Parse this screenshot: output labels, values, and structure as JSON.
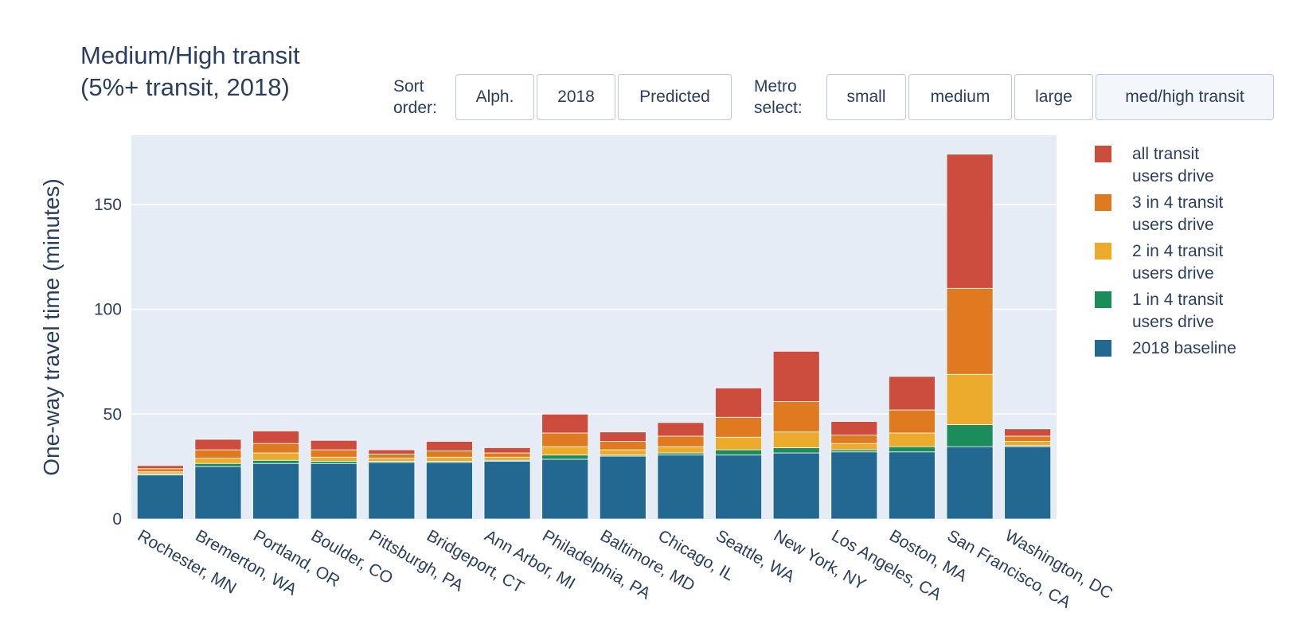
{
  "title_line1": "Medium/High transit",
  "title_line2": "(5%+ transit, 2018)",
  "sort": {
    "label_line1": "Sort",
    "label_line2": "order:",
    "buttons": [
      "Alph.",
      "2018",
      "Predicted"
    ]
  },
  "metro": {
    "label_line1": "Metro",
    "label_line2": "select:",
    "buttons": [
      "small",
      "medium",
      "large",
      "med/high transit"
    ],
    "active": "med/high transit"
  },
  "colors": {
    "plot_bg": "#e5ecf6",
    "grid": "#ffffff",
    "text": "#2a3f5f"
  },
  "chart_data": {
    "type": "bar",
    "barmode": "stack",
    "ylabel": "One-way travel time (minutes)",
    "ylim": [
      0,
      183
    ],
    "yticks": [
      0,
      50,
      100,
      150
    ],
    "grid": true,
    "legend_position": "right",
    "categories": [
      "Rochester, MN",
      "Bremerton, WA",
      "Portland, OR",
      "Boulder, CO",
      "Pittsburgh, PA",
      "Bridgeport, CT",
      "Ann Arbor, MI",
      "Philadelphia, PA",
      "Baltimore, MD",
      "Chicago, IL",
      "Seattle, WA",
      "New York, NY",
      "Los Angeles, CA",
      "Boston, MA",
      "San Francisco, CA",
      "Washington, DC"
    ],
    "series": [
      {
        "name": "2018 baseline",
        "color": "#226891",
        "values": [
          21,
          25,
          26.5,
          26.5,
          27,
          27,
          27.5,
          28.5,
          30,
          30.5,
          30.5,
          31.5,
          32,
          32,
          34.5,
          34.5
        ]
      },
      {
        "name": "1 in 4 transit users drive",
        "color": "#1c8c5a",
        "values": [
          0.5,
          1.5,
          1.5,
          1,
          0.5,
          0.5,
          0.5,
          2,
          0.5,
          1,
          2.5,
          2.5,
          1,
          2.5,
          10.5,
          0.5
        ]
      },
      {
        "name": "2 in 4 transit users drive",
        "color": "#ecab2c",
        "values": [
          1,
          2.5,
          3.5,
          2,
          1.5,
          2,
          1.5,
          4,
          2.5,
          3,
          6,
          7.5,
          3,
          6.5,
          24,
          2
        ]
      },
      {
        "name": "3 in 4 transit users drive",
        "color": "#e07a20",
        "values": [
          1.5,
          4,
          4.5,
          3.5,
          2,
          3,
          2,
          6.5,
          4,
          5,
          9.5,
          14.5,
          4,
          11,
          41,
          2.5
        ]
      },
      {
        "name": "all transit users drive",
        "color": "#cc4c3e",
        "values": [
          1.5,
          5,
          6,
          4.5,
          2,
          4.5,
          2.5,
          9,
          4.5,
          6.5,
          14,
          24,
          6.5,
          16,
          64,
          3.5
        ]
      }
    ],
    "legend_order": [
      "all transit users drive",
      "3 in 4 transit users drive",
      "2 in 4 transit users drive",
      "1 in 4 transit users drive",
      "2018 baseline"
    ],
    "legend_lines": {
      "all transit users drive": [
        "all transit",
        "users drive"
      ],
      "3 in 4 transit users drive": [
        "3 in 4 transit",
        "users drive"
      ],
      "2 in 4 transit users drive": [
        "2 in 4 transit",
        "users drive"
      ],
      "1 in 4 transit users drive": [
        "1 in 4 transit",
        "users drive"
      ],
      "2018 baseline": [
        "2018 baseline"
      ]
    }
  }
}
